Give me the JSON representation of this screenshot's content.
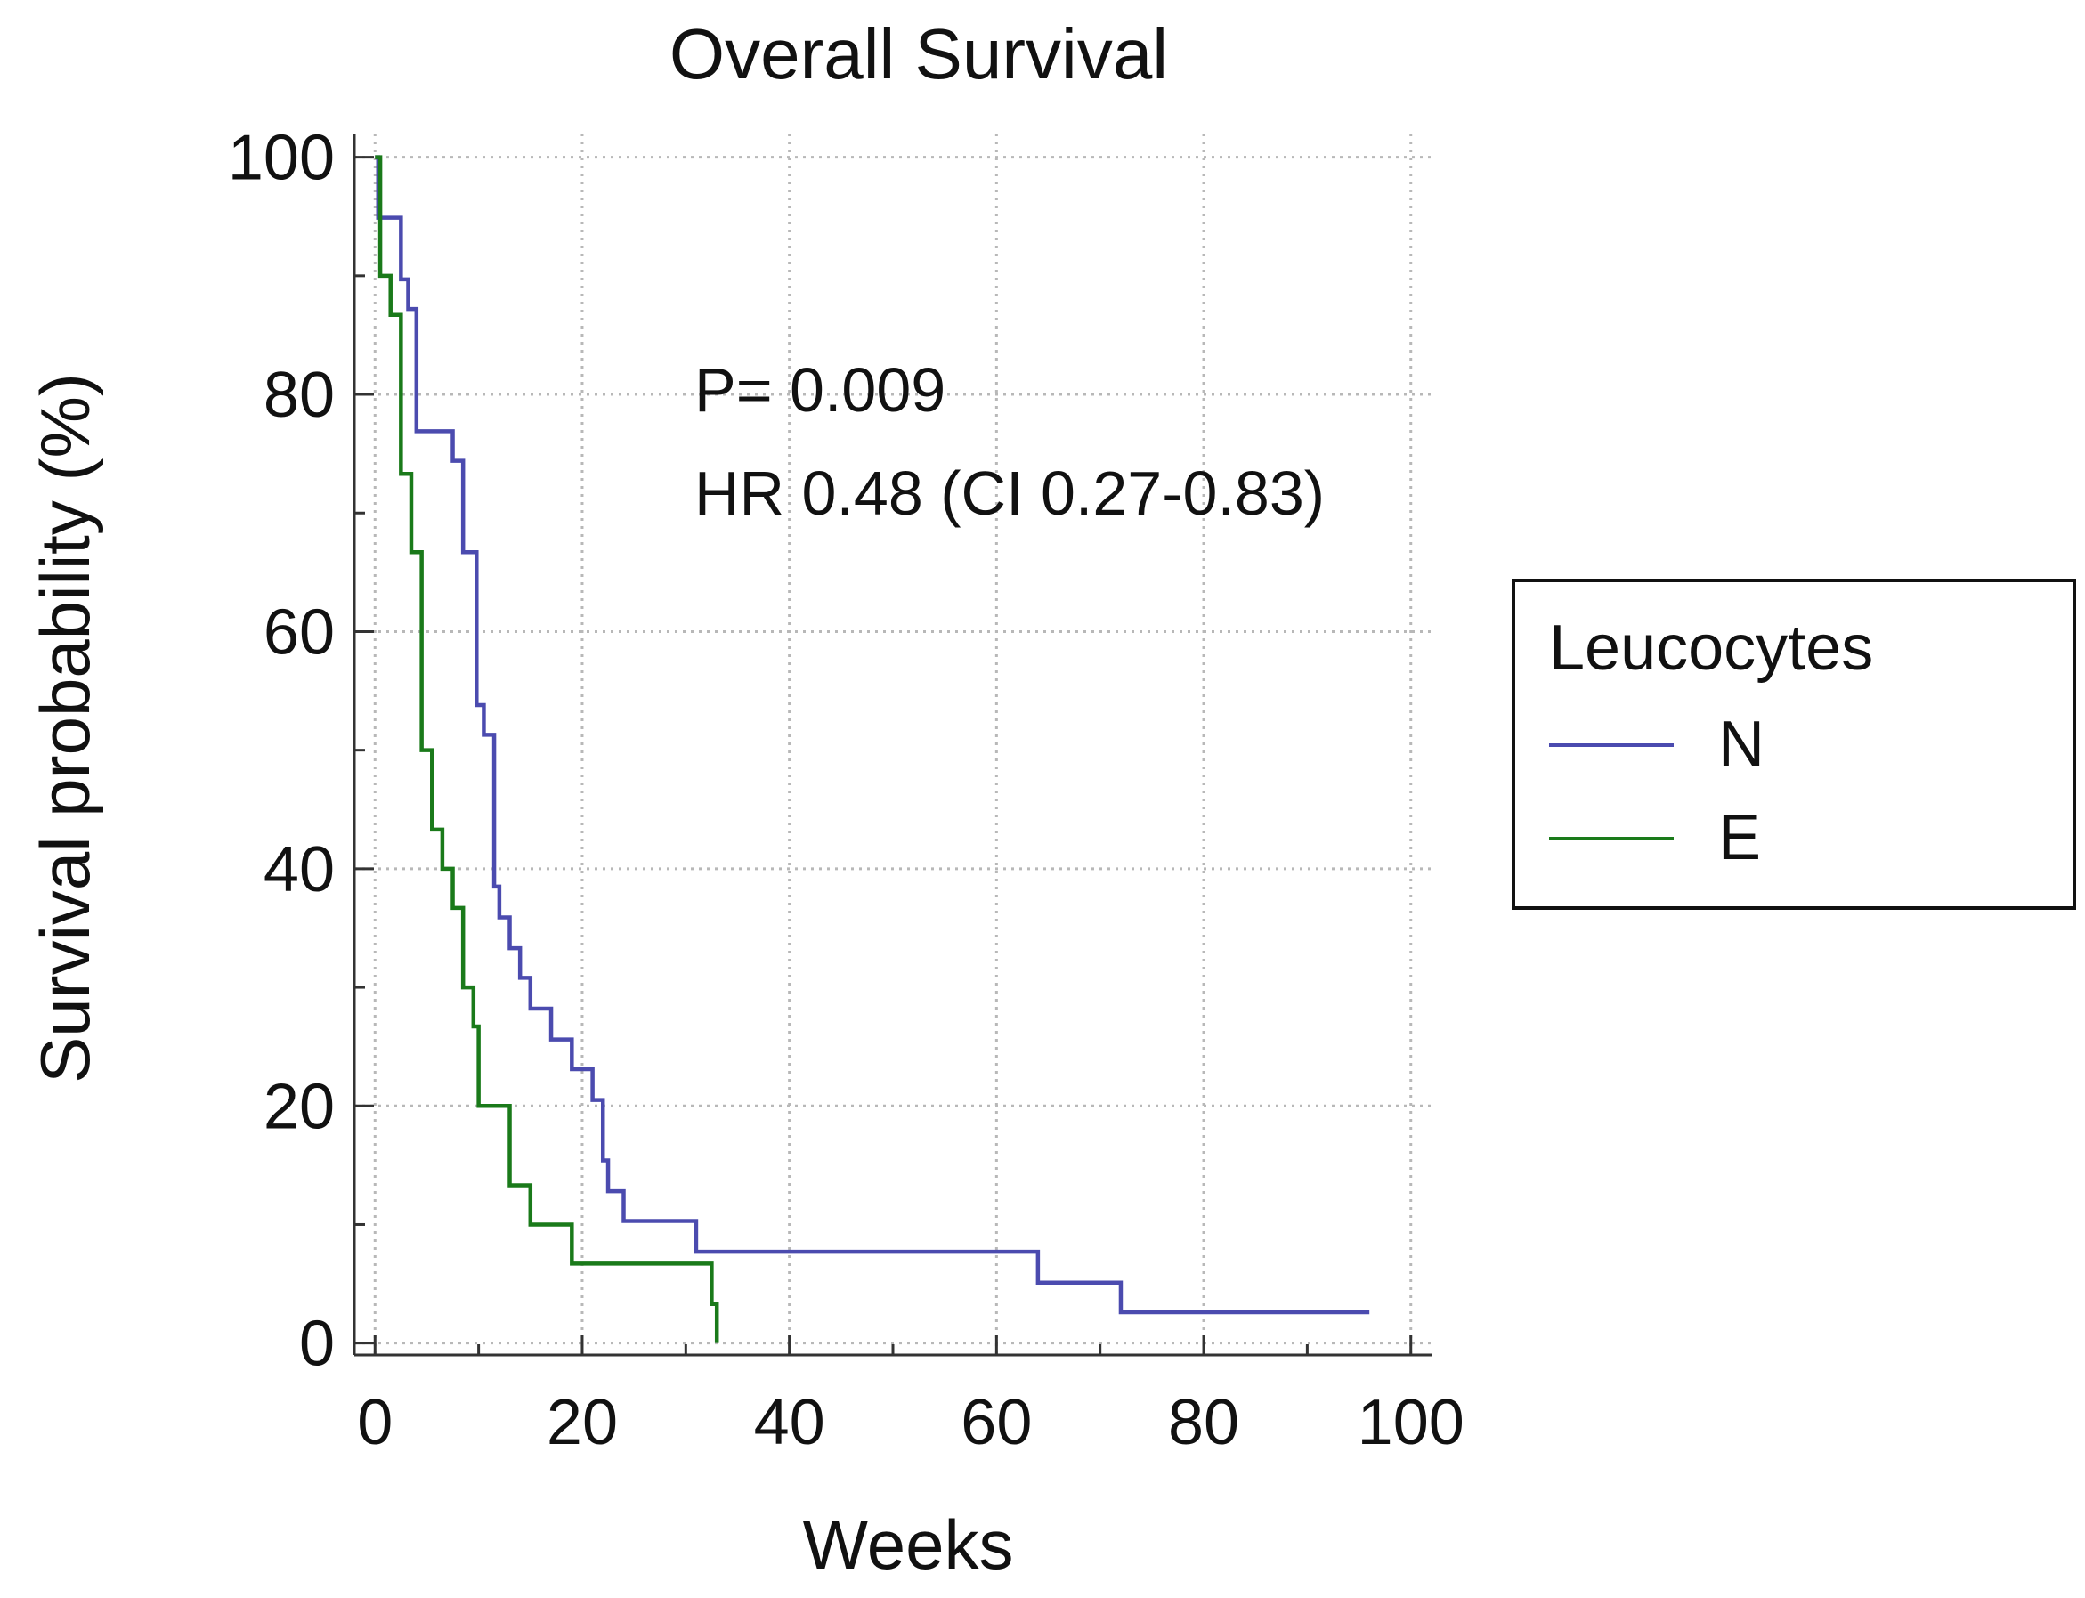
{
  "chart_data": {
    "type": "line",
    "step": true,
    "title": "Overall Survival",
    "xlabel": "Weeks",
    "ylabel": "Survival probability (%)",
    "xlim": [
      -2,
      102
    ],
    "ylim": [
      -1,
      102
    ],
    "xticks": [
      0,
      20,
      40,
      60,
      80,
      100
    ],
    "yticks": [
      0,
      20,
      40,
      60,
      80,
      100
    ],
    "xtick_labels": [
      "0",
      "20",
      "40",
      "60",
      "80",
      "100"
    ],
    "ytick_labels": [
      "0",
      "20",
      "40",
      "60",
      "80",
      "100"
    ],
    "grid": true,
    "legend": {
      "title": "Leucocytes",
      "position": "right"
    },
    "annotations": [
      "P= 0.009",
      "HR 0.48 (CI 0.27-0.83)"
    ],
    "series": [
      {
        "name": "N",
        "color": "#4b4baf",
        "x": [
          0,
          0.3,
          2.5,
          3.2,
          4,
          5,
          7.5,
          8.5,
          9.8,
          10.5,
          11.5,
          12,
          13,
          14,
          15,
          17,
          19,
          21,
          22,
          22.5,
          23,
          24,
          31,
          64,
          72,
          96
        ],
        "y": [
          100,
          94.9,
          89.7,
          87.2,
          76.9,
          76.9,
          74.4,
          66.7,
          53.8,
          51.3,
          38.5,
          35.9,
          33.3,
          30.8,
          28.2,
          25.6,
          23.1,
          20.5,
          15.4,
          12.8,
          12.8,
          10.3,
          7.7,
          5.1,
          2.6,
          2.6
        ]
      },
      {
        "name": "E",
        "color": "#1a7a1a",
        "x": [
          0,
          0.5,
          1.5,
          2.5,
          3.5,
          4.5,
          5.5,
          6.5,
          7.5,
          8.5,
          9.5,
          10,
          13,
          15,
          19,
          21,
          25,
          32.5,
          33
        ],
        "y": [
          100,
          90,
          86.7,
          73.3,
          66.7,
          50,
          43.3,
          40,
          36.7,
          30,
          26.7,
          20,
          13.3,
          10,
          6.7,
          6.7,
          6.7,
          3.3,
          0
        ]
      }
    ]
  }
}
